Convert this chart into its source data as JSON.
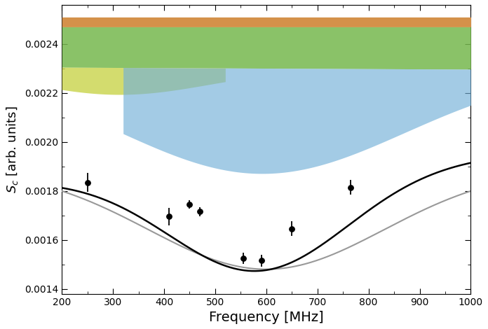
{
  "xlim": [
    200,
    1000
  ],
  "ylim": [
    0.00138,
    0.00256
  ],
  "xlabel": "Frequency [MHz]",
  "ylabel": "$S_c$ [arb. units]",
  "xticks": [
    200,
    300,
    400,
    500,
    600,
    700,
    800,
    900,
    1000
  ],
  "yticks": [
    0.0014,
    0.0016,
    0.0018,
    0.002,
    0.0022,
    0.0024
  ],
  "data_points": {
    "x": [
      250,
      410,
      450,
      470,
      555,
      590,
      650,
      765
    ],
    "y": [
      0.001835,
      0.001695,
      0.001745,
      0.001715,
      0.001525,
      0.001515,
      0.001645,
      0.001815
    ],
    "yerr": [
      4e-05,
      3.5e-05,
      1.8e-05,
      1.8e-05,
      2.2e-05,
      2.5e-05,
      3e-05,
      3e-05
    ]
  },
  "orange_color": "#D4914A",
  "green_color": "#76B84E",
  "yellow_color": "#C8D44A",
  "blue_color": "#72B0D8",
  "black_curve_color": "#000000",
  "gray_curve_color": "#999999",
  "black_lw": 1.8,
  "gray_lw": 1.5
}
